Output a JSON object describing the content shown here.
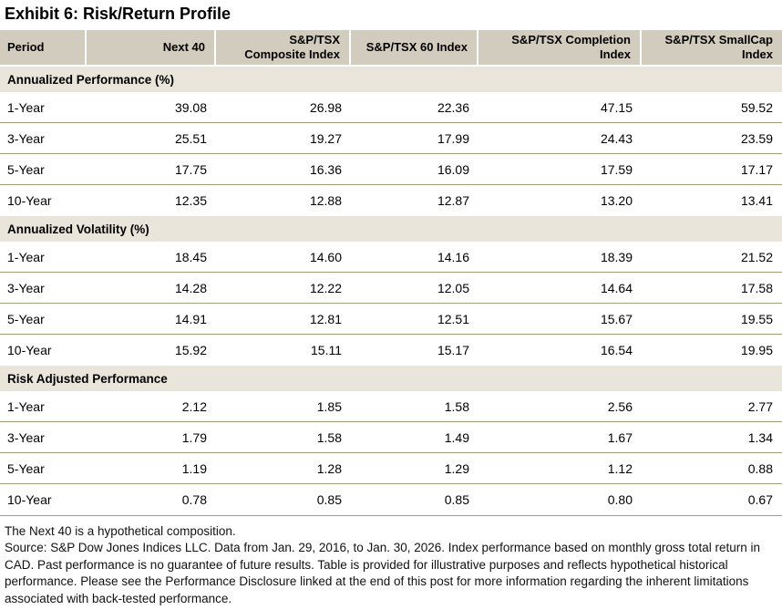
{
  "title": "Exhibit 6: Risk/Return Profile",
  "table": {
    "header": {
      "period": "Period",
      "cols": [
        "Next 40",
        "S&P/TSX Composite Index",
        "S&P/TSX 60 Index",
        "S&P/TSX Completion Index",
        "S&P/TSX SmallCap Index"
      ]
    },
    "sections": [
      {
        "label": "Annualized Performance (%)",
        "rows": [
          {
            "period": "1-Year",
            "values": [
              "39.08",
              "26.98",
              "22.36",
              "47.15",
              "59.52"
            ]
          },
          {
            "period": "3-Year",
            "values": [
              "25.51",
              "19.27",
              "17.99",
              "24.43",
              "23.59"
            ]
          },
          {
            "period": "5-Year",
            "values": [
              "17.75",
              "16.36",
              "16.09",
              "17.59",
              "17.17"
            ]
          },
          {
            "period": "10-Year",
            "values": [
              "12.35",
              "12.88",
              "12.87",
              "13.20",
              "13.41"
            ]
          }
        ]
      },
      {
        "label": "Annualized Volatility (%)",
        "rows": [
          {
            "period": "1-Year",
            "values": [
              "18.45",
              "14.60",
              "14.16",
              "18.39",
              "21.52"
            ]
          },
          {
            "period": "3-Year",
            "values": [
              "14.28",
              "12.22",
              "12.05",
              "14.64",
              "17.58"
            ]
          },
          {
            "period": "5-Year",
            "values": [
              "14.91",
              "12.81",
              "12.51",
              "15.67",
              "19.55"
            ]
          },
          {
            "period": "10-Year",
            "values": [
              "15.92",
              "15.11",
              "15.17",
              "16.54",
              "19.95"
            ]
          }
        ]
      },
      {
        "label": "Risk Adjusted Performance",
        "rows": [
          {
            "period": "1-Year",
            "values": [
              "2.12",
              "1.85",
              "1.58",
              "2.56",
              "2.77"
            ]
          },
          {
            "period": "3-Year",
            "values": [
              "1.79",
              "1.58",
              "1.49",
              "1.67",
              "1.34"
            ]
          },
          {
            "period": "5-Year",
            "values": [
              "1.19",
              "1.28",
              "1.29",
              "1.12",
              "0.88"
            ]
          },
          {
            "period": "10-Year",
            "values": [
              "0.78",
              "0.85",
              "0.85",
              "0.80",
              "0.67"
            ]
          }
        ]
      }
    ]
  },
  "footnotes": [
    "The Next 40 is a hypothetical composition.",
    "Source: S&P Dow Jones Indices LLC. Data from Jan. 29, 2016, to Jan. 30, 2026. Index performance based on monthly gross total return in CAD. Past performance is no guarantee of future results. Table is provided for illustrative purposes and reflects hypothetical historical performance. Please see the Performance Disclosure linked at the end of this post for more information regarding the inherent limitations associated with back-tested performance."
  ],
  "colors": {
    "header_bg": "#d2ccbe",
    "section_bg": "#e9e5da",
    "divider": "#a79a78"
  }
}
